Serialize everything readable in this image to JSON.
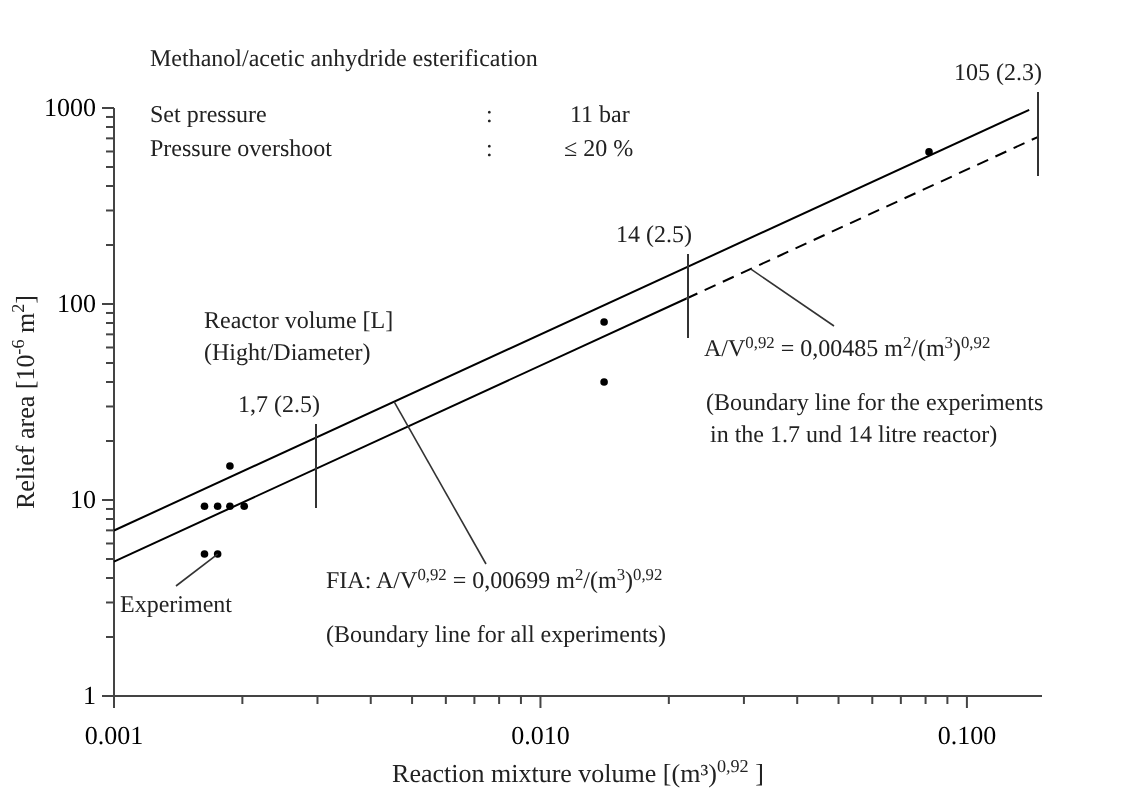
{
  "chart_data": {
    "type": "scatter",
    "log": "xy",
    "grid": false,
    "line_style": "solid",
    "xlabel": "Reaction mixture volume [(m³)$^{0,92}$ ]",
    "ylabel": "Relief area [10$^{-6}$ m$^{2}$]",
    "xlim": [
      0.001,
      0.15
    ],
    "ylim": [
      1,
      1000
    ],
    "xticks": [
      0.001,
      {
        "value": 0.002,
        "label": null
      },
      {
        "value": 0.003,
        "label": null
      },
      {
        "value": 0.004,
        "label": null
      },
      {
        "value": 0.005,
        "label": null
      },
      {
        "value": 0.006,
        "label": null
      },
      {
        "value": 0.007,
        "label": null
      },
      {
        "value": 0.008,
        "label": null
      },
      {
        "value": 0.009,
        "label": null
      },
      {
        "value": 0.01,
        "label": "0.010"
      },
      {
        "value": 0.02,
        "label": null
      },
      {
        "value": 0.03,
        "label": null
      },
      {
        "value": 0.04,
        "label": null
      },
      {
        "value": 0.05,
        "label": null
      },
      {
        "value": 0.06,
        "label": null
      },
      {
        "value": 0.07,
        "label": null
      },
      {
        "value": 0.08,
        "label": null
      },
      {
        "value": 0.09,
        "label": null
      },
      {
        "value": 0.1,
        "label": "0.100"
      }
    ],
    "yticks": [
      1,
      {
        "value": 2,
        "label": null
      },
      {
        "value": 3,
        "label": null
      },
      {
        "value": 4,
        "label": null
      },
      {
        "value": 5,
        "label": null
      },
      {
        "value": 6,
        "label": null
      },
      {
        "value": 7,
        "label": null
      },
      {
        "value": 8,
        "label": null
      },
      {
        "value": 9,
        "label": null
      },
      10,
      {
        "value": 20,
        "label": null
      },
      {
        "value": 30,
        "label": null
      },
      {
        "value": 40,
        "label": null
      },
      {
        "value": 50,
        "label": null
      },
      {
        "value": 60,
        "label": null
      },
      {
        "value": 70,
        "label": null
      },
      {
        "value": 80,
        "label": null
      },
      {
        "value": 90,
        "label": null
      },
      100,
      {
        "value": 200,
        "label": null
      },
      {
        "value": 300,
        "label": null
      },
      {
        "value": 400,
        "label": null
      },
      {
        "value": 500,
        "label": null
      },
      {
        "value": 600,
        "label": null
      },
      {
        "value": 700,
        "label": null
      },
      {
        "value": 800,
        "label": null
      },
      {
        "value": 900,
        "label": null
      },
      1000
    ],
    "series": [
      {
        "type": "scatter",
        "marker": "circle",
        "color": "#000000",
        "x": [
          0.00187,
          0.00163,
          0.00175,
          0.00187,
          0.00202,
          0.00163,
          0.00175,
          0.0141,
          0.0141,
          0.0815
        ],
        "values": [
          14.9,
          9.3,
          9.3,
          9.3,
          9.3,
          5.3,
          5.3,
          81,
          40,
          597
        ]
      },
      {
        "type": "line",
        "color": "#000000",
        "x": [
          0.001,
          0.14
        ],
        "values": [
          6.99,
          979
        ]
      },
      {
        "type": "line",
        "color": "#000000",
        "x": [
          0.001,
          0.022
        ],
        "values": [
          4.85,
          106.7
        ]
      },
      {
        "type": "line",
        "color": "#000000",
        "line_style": "dashed",
        "x": [
          0.022,
          0.147
        ],
        "values": [
          106.7,
          713
        ]
      }
    ],
    "title": "Methanol/acetic anhydride esterification",
    "annotations": [
      "Set pressure",
      ":",
      "11 bar",
      "Pressure overshoot",
      ":",
      "≤ 20 %",
      "Reactor volume [L]",
      "(Hight/Diameter)",
      "1,7 (2.5)",
      "14 (2.5)",
      "105 (2.3)",
      {
        "text": "FIA: A/V$^{0,92}$ = 0,00699 m$^{2}$/(m$^{3}$)$^{0,92}$",
        "x": 0.00454,
        "y": 31.7
      },
      "(Boundary line for all experiments)",
      {
        "text": "A/V$^{0,92}$ = 0,00485 m$^{2}$/(m$^{3}$)$^{0,92}$",
        "x": 0.0311,
        "y": 151
      },
      "(Boundary line for the experiments",
      "in the 1.7 und 14 litre reactor)",
      {
        "text": "Experiment",
        "x": 0.00175,
        "y": 5.3
      }
    ]
  }
}
